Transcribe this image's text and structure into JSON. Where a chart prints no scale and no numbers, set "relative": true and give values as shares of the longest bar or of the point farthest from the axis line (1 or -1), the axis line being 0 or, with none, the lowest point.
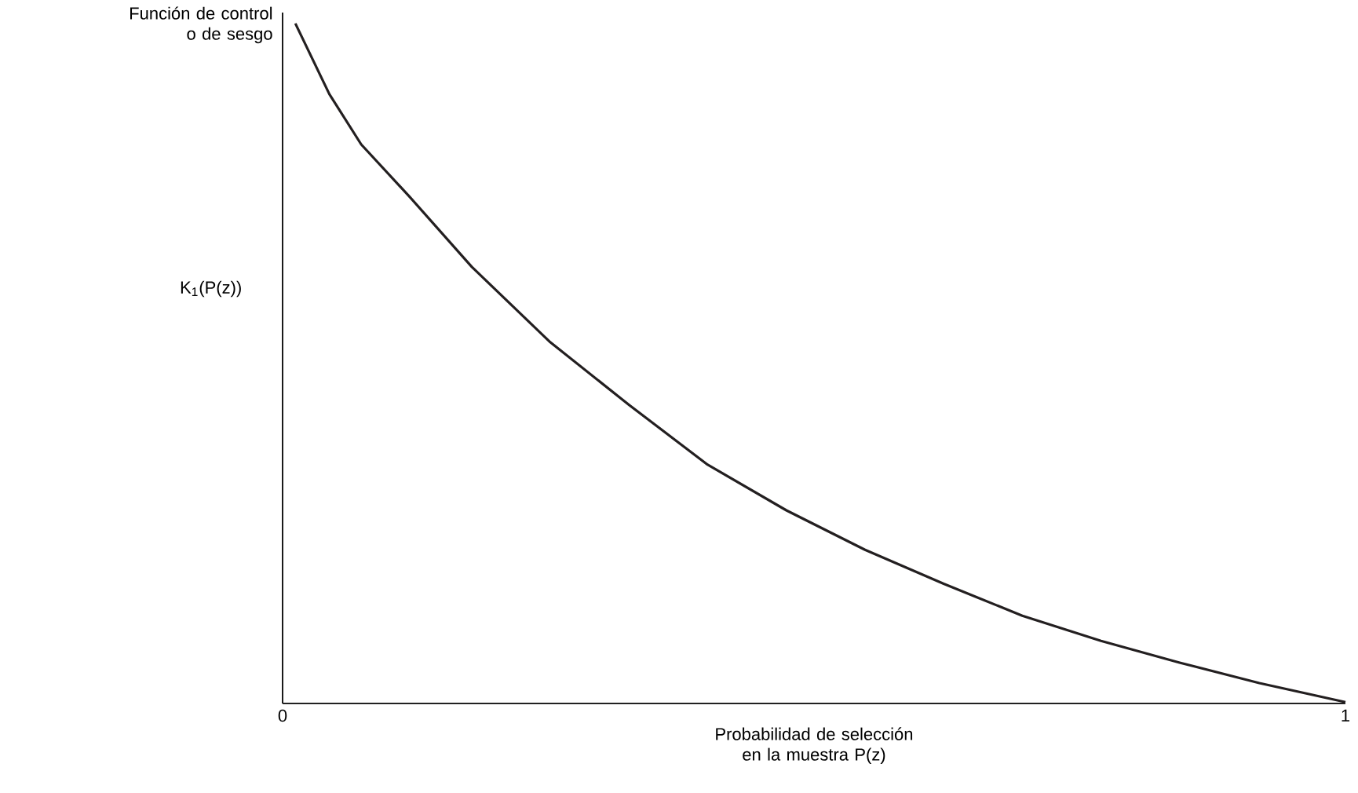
{
  "chart_data": {
    "type": "line",
    "ylabel": "Función de control o de sesgo",
    "xlabel": "Probabilidad de selección en la muestra P(z)",
    "annotations": [
      "K$_{1}$(P(z))"
    ],
    "relative": true,
    "xlim": [
      0,
      1
    ],
    "xticks": [
      0,
      1
    ],
    "series": [
      {
        "color": "#231f20",
        "x": [
          0.012,
          0.044,
          0.074,
          0.119,
          0.178,
          0.252,
          0.326,
          0.4,
          0.474,
          0.548,
          0.622,
          0.696,
          0.77,
          0.844,
          0.919,
          1.0
        ],
        "values": [
          1.0,
          0.896,
          0.822,
          0.746,
          0.642,
          0.531,
          0.439,
          0.351,
          0.284,
          0.226,
          0.176,
          0.129,
          0.092,
          0.06,
          0.03,
          0.002
        ]
      }
    ]
  }
}
